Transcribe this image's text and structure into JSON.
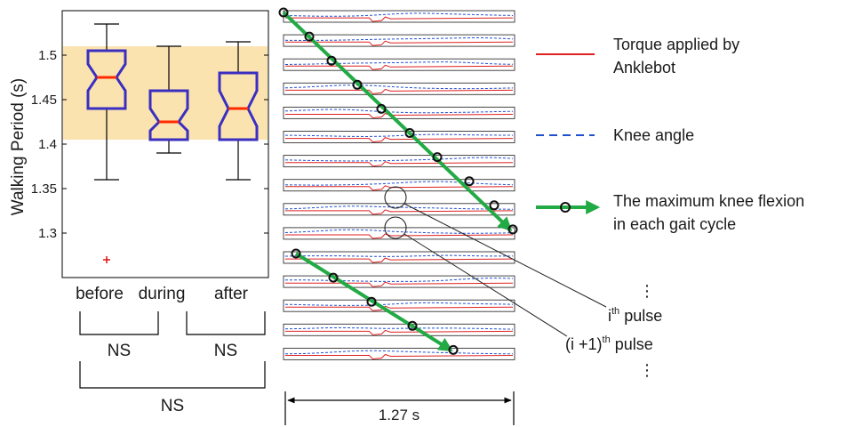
{
  "chart_data": [
    {
      "type": "box",
      "ylabel": "Walking Period (s)",
      "ylim": [
        1.25,
        1.55
      ],
      "yticks": [
        1.3,
        1.35,
        1.4,
        1.45,
        1.5
      ],
      "ytick_labels": [
        "1.3",
        "1.35",
        "1.4",
        "1.45",
        "1.5"
      ],
      "categories": [
        "before",
        "during",
        "after"
      ],
      "boxes": [
        {
          "label": "before",
          "whisker_low": 1.36,
          "q1": 1.44,
          "median": 1.475,
          "q3": 1.505,
          "whisker_high": 1.535,
          "notch_low": 1.46,
          "notch_high": 1.49,
          "outliers": [
            1.27
          ]
        },
        {
          "label": "during",
          "whisker_low": 1.39,
          "q1": 1.405,
          "median": 1.425,
          "q3": 1.46,
          "whisker_high": 1.51,
          "notch_low": 1.415,
          "notch_high": 1.44,
          "outliers": []
        },
        {
          "label": "after",
          "whisker_low": 1.36,
          "q1": 1.405,
          "median": 1.44,
          "q3": 1.48,
          "whisker_high": 1.515,
          "notch_low": 1.42,
          "notch_high": 1.46,
          "outliers": []
        }
      ],
      "shaded_band": [
        1.405,
        1.51
      ],
      "colors": {
        "box": "#3a2fc0",
        "median": "#ff2a00",
        "whisker": "#000000",
        "outlier": "#e01010",
        "band": "#fbe3b0"
      },
      "significance": [
        {
          "from": "before",
          "to": "during",
          "label": "NS"
        },
        {
          "from": "during",
          "to": "after",
          "label": "NS"
        },
        {
          "from": "before",
          "to": "after",
          "label": "NS"
        }
      ]
    },
    {
      "type": "line",
      "description": "stacked gait-cycle traces",
      "cycles": 15,
      "series": [
        {
          "name": "Torque applied by Anklebot",
          "color": "#e02020",
          "style": "solid"
        },
        {
          "name": "Knee angle",
          "color": "#2050d0",
          "style": "dashed"
        },
        {
          "name": "The maximum knee flexion in each gait cycle",
          "color": "#22aa44",
          "style": "arrow-marker"
        }
      ],
      "duration_label": "1.27 s",
      "pulse_labels": {
        "dots_top": "⋮",
        "pulse_i_base": "i",
        "pulse_i_sup": "th",
        "pulse_i_suffix": " pulse",
        "pulse_i1_base": "(i +1)",
        "pulse_i1_sup": "th",
        "pulse_i1_suffix": " pulse",
        "dots_bottom": "⋮"
      }
    }
  ],
  "legend": {
    "torque_line1": "Torque applied by",
    "torque_line2": "Anklebot",
    "knee": "Knee angle",
    "maxflex_line1": "The maximum knee flexion",
    "maxflex_line2": "in each gait cycle"
  },
  "colors": {
    "green_arrow": "#22aa44",
    "trace_red": "#e02020",
    "trace_blue": "#2050d0"
  }
}
